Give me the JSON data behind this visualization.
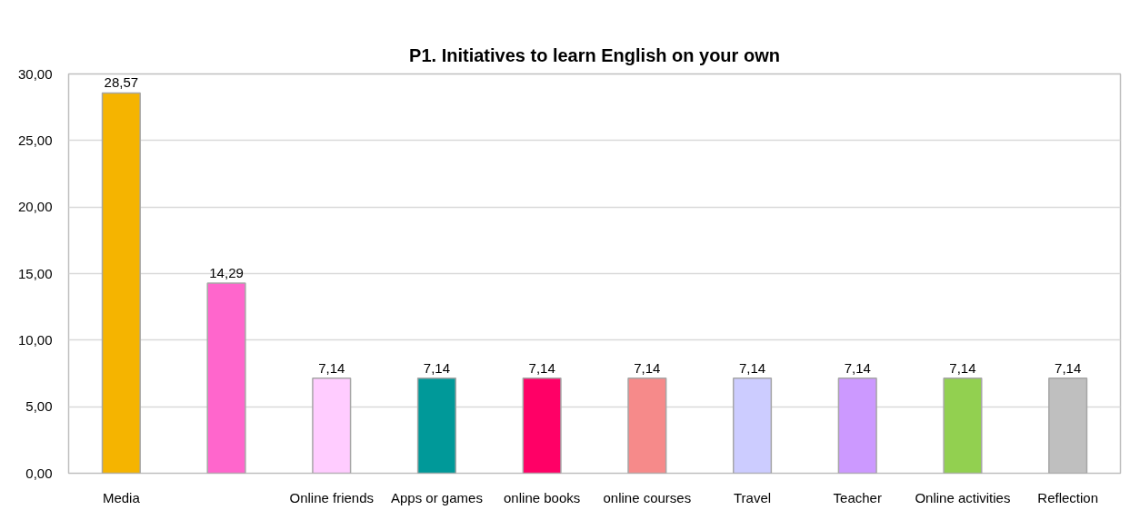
{
  "chart_data": {
    "type": "bar",
    "title": "P1. Initiatives to learn English on your own",
    "categories": [
      "Media",
      null,
      "Online friends",
      "Apps or games",
      "online books",
      "online courses",
      "Travel",
      "Teacher",
      "Online activities",
      "Reflection"
    ],
    "values": [
      28.57,
      14.29,
      7.14,
      7.14,
      7.14,
      7.14,
      7.14,
      7.14,
      7.14,
      7.14
    ],
    "value_labels": [
      "28,57",
      "14,29",
      "7,14",
      "7,14",
      "7,14",
      "7,14",
      "7,14",
      "7,14",
      "7,14",
      "7,14"
    ],
    "colors": [
      "#f5b400",
      "#ff66cc",
      "#ffccff",
      "#009999",
      "#ff0066",
      "#f68a8a",
      "#ccccff",
      "#cc99ff",
      "#92d050",
      "#bfbfbf"
    ],
    "ylim": [
      0,
      30
    ],
    "yticks": [
      {
        "value": 0,
        "label": "0,00"
      },
      {
        "value": 5,
        "label": "5,00"
      },
      {
        "value": 10,
        "label": "10,00"
      },
      {
        "value": 15,
        "label": "15,00"
      },
      {
        "value": 20,
        "label": "20,00"
      },
      {
        "value": 25,
        "label": "25,00"
      },
      {
        "value": 30,
        "label": "30,00"
      }
    ],
    "grid": "y"
  }
}
